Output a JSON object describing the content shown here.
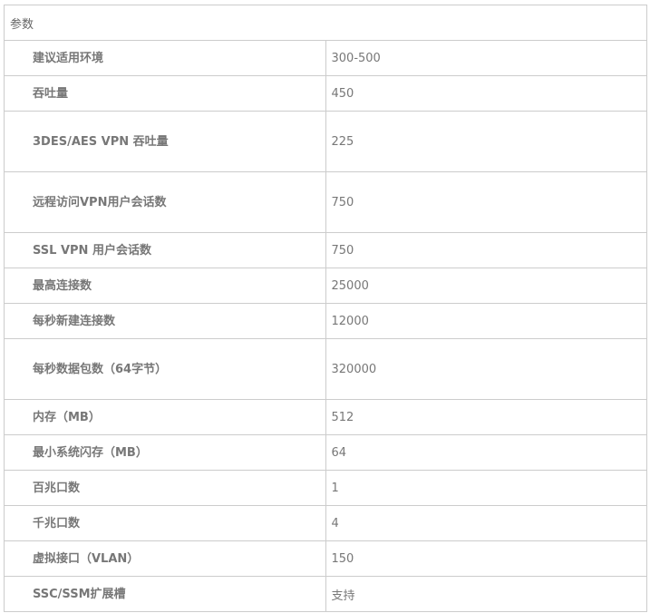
{
  "header": "参数",
  "rows": [
    {
      "label": "建议适用环境",
      "value": "300-500"
    },
    {
      "label": "吞吐量",
      "value": "450"
    },
    {
      "label": "3DES/AES VPN 吞吐量",
      "value": "225",
      "wrap": true
    },
    {
      "label": "远程访问VPN用户会话数",
      "value": "750",
      "wrap": true
    },
    {
      "label": "SSL VPN 用户会话数",
      "value": "750"
    },
    {
      "label": "最高连接数",
      "value": "25000"
    },
    {
      "label": "每秒新建连接数",
      "value": "12000"
    },
    {
      "label": "每秒数据包数（64字节）",
      "value": "320000",
      "wrap": true
    },
    {
      "label": "内存（MB）",
      "value": "512"
    },
    {
      "label": "最小系统闪存（MB）",
      "value": "64"
    },
    {
      "label": "百兆口数",
      "value": "1"
    },
    {
      "label": "千兆口数",
      "value": "4"
    },
    {
      "label": "虚拟接口（VLAN）",
      "value": "150"
    },
    {
      "label": "SSC/SSM扩展槽",
      "value": "支持"
    }
  ]
}
